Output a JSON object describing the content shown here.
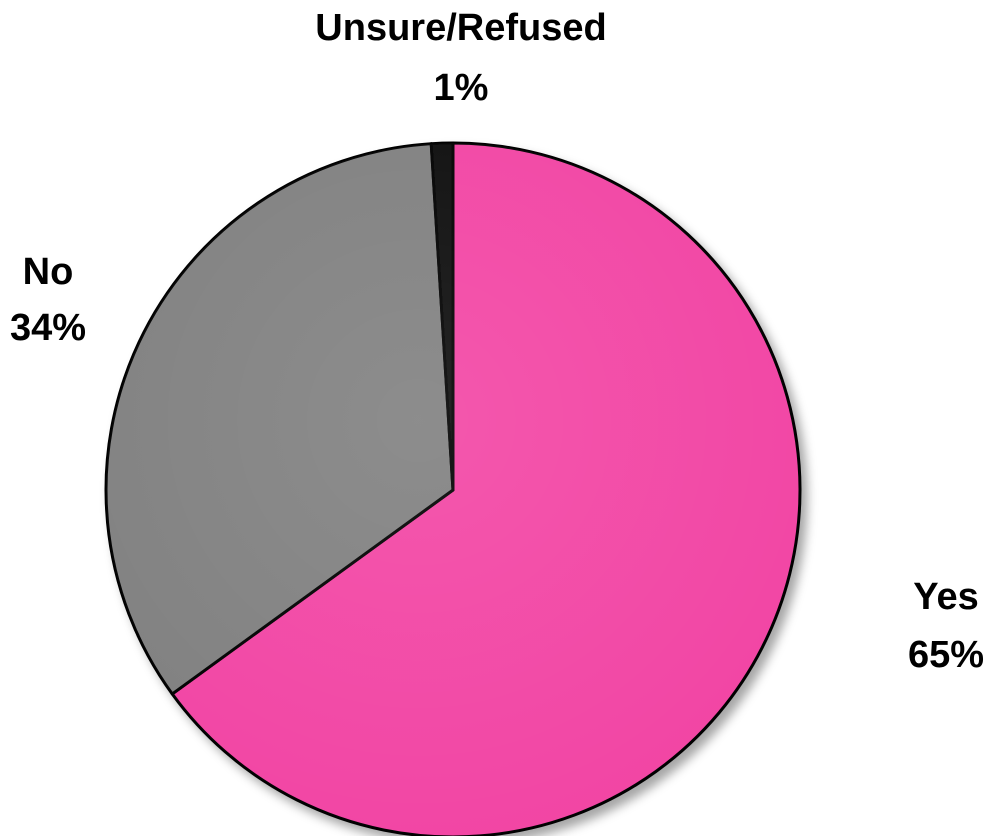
{
  "chart_data": {
    "type": "pie",
    "slices": [
      {
        "label": "Yes",
        "value": 65,
        "display": "65%",
        "color": "#f244a4"
      },
      {
        "label": "No",
        "value": 34,
        "display": "34%",
        "color": "#808080"
      },
      {
        "label": "Unsure/Refused",
        "value": 1,
        "display": "1%",
        "color": "#111111"
      }
    ],
    "start": "12 o'clock",
    "direction": "clockwise",
    "legend": "none",
    "outline_color": "#000000"
  }
}
